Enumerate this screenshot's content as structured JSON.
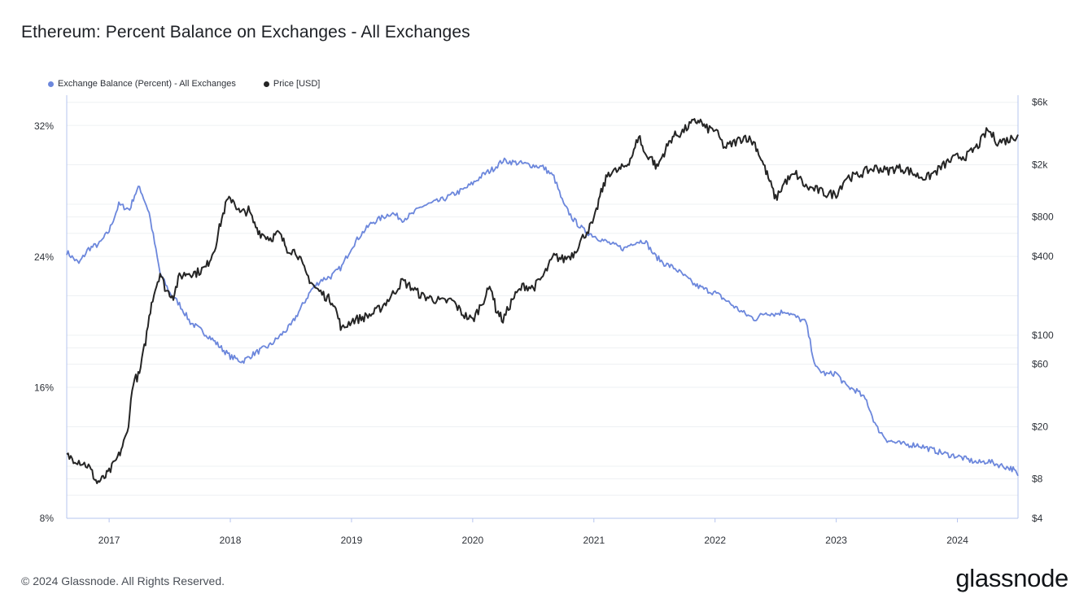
{
  "page": {
    "title": "Ethereum: Percent Balance on Exchanges - All Exchanges",
    "footer": "© 2024 Glassnode. All Rights Reserved.",
    "brand": "glassnode"
  },
  "colors": {
    "balance": "#6c87dc",
    "price": "#252525",
    "grid": "#eef0f3",
    "axis": "#b6c4ef"
  },
  "chart_data": {
    "type": "line",
    "title": "Ethereum: Percent Balance on Exchanges - All Exchanges",
    "legend_position": "top-left",
    "grid": true,
    "x_ticks": [
      "2017",
      "2018",
      "2019",
      "2020",
      "2021",
      "2022",
      "2023",
      "2024"
    ],
    "x_range": [
      2016.65,
      2024.5
    ],
    "y_left": {
      "ticks": [
        "8%",
        "16%",
        "24%",
        "32%"
      ],
      "range": [
        8,
        33.9
      ],
      "scale": "linear"
    },
    "y_right": {
      "ticks": [
        "$4",
        "$8",
        "$20",
        "$60",
        "$100",
        "$400",
        "$800",
        "$2k",
        "$6k"
      ],
      "tick_values": [
        4,
        8,
        20,
        60,
        100,
        400,
        800,
        2000,
        6000
      ],
      "range": [
        4,
        6800
      ],
      "scale": "log"
    },
    "series": [
      {
        "name": "Exchange Balance (Percent) - All Exchanges",
        "axis": "left",
        "x": [
          2016.65,
          2016.75,
          2016.83,
          2016.92,
          2017.0,
          2017.08,
          2017.17,
          2017.21,
          2017.25,
          2017.33,
          2017.42,
          2017.5,
          2017.58,
          2017.67,
          2017.83,
          2018.0,
          2018.1,
          2018.2,
          2018.33,
          2018.5,
          2018.67,
          2018.75,
          2018.83,
          2018.92,
          2019.0,
          2019.08,
          2019.17,
          2019.25,
          2019.33,
          2019.42,
          2019.5,
          2019.58,
          2019.67,
          2019.75,
          2019.83,
          2019.92,
          2020.0,
          2020.08,
          2020.17,
          2020.25,
          2020.33,
          2020.42,
          2020.5,
          2020.58,
          2020.67,
          2020.75,
          2020.83,
          2020.92,
          2021.0,
          2021.08,
          2021.17,
          2021.25,
          2021.33,
          2021.42,
          2021.5,
          2021.58,
          2021.67,
          2021.75,
          2021.83,
          2021.92,
          2022.0,
          2022.08,
          2022.17,
          2022.25,
          2022.33,
          2022.42,
          2022.5,
          2022.58,
          2022.67,
          2022.75,
          2022.83,
          2022.92,
          2023.0,
          2023.08,
          2023.17,
          2023.25,
          2023.33,
          2023.42,
          2023.5,
          2023.58,
          2023.67,
          2023.75,
          2023.83,
          2023.92,
          2024.0,
          2024.08,
          2024.17,
          2024.25,
          2024.33,
          2024.42,
          2024.46,
          2024.5
        ],
        "values": [
          24.3,
          23.6,
          24.5,
          24.8,
          25.6,
          27.2,
          26.9,
          27.8,
          28.3,
          26.7,
          23.0,
          21.8,
          21.1,
          20.0,
          19.1,
          17.9,
          17.6,
          18.1,
          18.6,
          19.8,
          22.0,
          22.6,
          22.8,
          23.4,
          24.6,
          25.4,
          26.1,
          26.4,
          26.7,
          26.3,
          26.6,
          27.1,
          27.3,
          27.5,
          27.8,
          28.1,
          28.5,
          29.0,
          29.4,
          29.9,
          29.8,
          29.7,
          29.6,
          29.5,
          28.9,
          27.2,
          26.3,
          25.6,
          25.3,
          25.0,
          24.7,
          24.5,
          24.9,
          25.0,
          24.1,
          23.6,
          23.3,
          22.8,
          22.3,
          22.0,
          21.8,
          21.4,
          20.9,
          20.5,
          20.2,
          20.6,
          20.5,
          20.7,
          20.3,
          20.0,
          17.2,
          16.8,
          16.9,
          16.1,
          15.8,
          15.2,
          13.6,
          12.8,
          12.6,
          12.5,
          12.5,
          12.3,
          12.1,
          11.9,
          11.8,
          11.6,
          11.4,
          11.5,
          11.3,
          11.1,
          11.0,
          10.6
        ]
      },
      {
        "name": "Price [USD]",
        "axis": "right",
        "x": [
          2016.65,
          2016.75,
          2016.83,
          2016.9,
          2016.95,
          2017.0,
          2017.08,
          2017.15,
          2017.2,
          2017.25,
          2017.3,
          2017.35,
          2017.42,
          2017.47,
          2017.53,
          2017.58,
          2017.65,
          2017.72,
          2017.8,
          2017.87,
          2017.92,
          2017.97,
          2018.02,
          2018.08,
          2018.15,
          2018.2,
          2018.25,
          2018.33,
          2018.4,
          2018.47,
          2018.55,
          2018.62,
          2018.7,
          2018.78,
          2018.85,
          2018.92,
          2019.0,
          2019.08,
          2019.17,
          2019.25,
          2019.33,
          2019.42,
          2019.5,
          2019.58,
          2019.67,
          2019.75,
          2019.83,
          2019.92,
          2020.0,
          2020.08,
          2020.15,
          2020.19,
          2020.25,
          2020.33,
          2020.42,
          2020.5,
          2020.58,
          2020.67,
          2020.75,
          2020.83,
          2020.92,
          2021.0,
          2021.05,
          2021.12,
          2021.2,
          2021.27,
          2021.33,
          2021.37,
          2021.42,
          2021.47,
          2021.52,
          2021.58,
          2021.65,
          2021.72,
          2021.8,
          2021.87,
          2021.92,
          2022.0,
          2022.08,
          2022.17,
          2022.25,
          2022.33,
          2022.4,
          2022.45,
          2022.5,
          2022.58,
          2022.67,
          2022.75,
          2022.83,
          2022.92,
          2023.0,
          2023.08,
          2023.17,
          2023.25,
          2023.33,
          2023.42,
          2023.5,
          2023.58,
          2023.67,
          2023.75,
          2023.83,
          2023.92,
          2024.0,
          2024.08,
          2024.17,
          2024.25,
          2024.33,
          2024.42,
          2024.5
        ],
        "values": [
          12,
          11,
          10,
          7.5,
          8,
          9,
          12,
          18,
          45,
          50,
          90,
          180,
          300,
          220,
          200,
          280,
          300,
          300,
          330,
          460,
          720,
          1050,
          1100,
          850,
          900,
          700,
          600,
          550,
          600,
          460,
          430,
          300,
          230,
          200,
          180,
          110,
          130,
          135,
          145,
          165,
          200,
          260,
          230,
          200,
          190,
          180,
          185,
          145,
          130,
          180,
          240,
          160,
          130,
          190,
          240,
          230,
          280,
          400,
          380,
          420,
          580,
          740,
          1150,
          1750,
          1800,
          2000,
          2500,
          3400,
          2400,
          2300,
          1900,
          2500,
          3300,
          3500,
          4100,
          4400,
          3800,
          3700,
          2700,
          3000,
          3300,
          2900,
          2000,
          1500,
          1100,
          1500,
          1700,
          1350,
          1300,
          1200,
          1200,
          1600,
          1650,
          1800,
          1900,
          1800,
          1900,
          1850,
          1650,
          1600,
          1800,
          2100,
          2300,
          2350,
          2800,
          3700,
          3000,
          3100,
          3400
        ]
      }
    ]
  }
}
